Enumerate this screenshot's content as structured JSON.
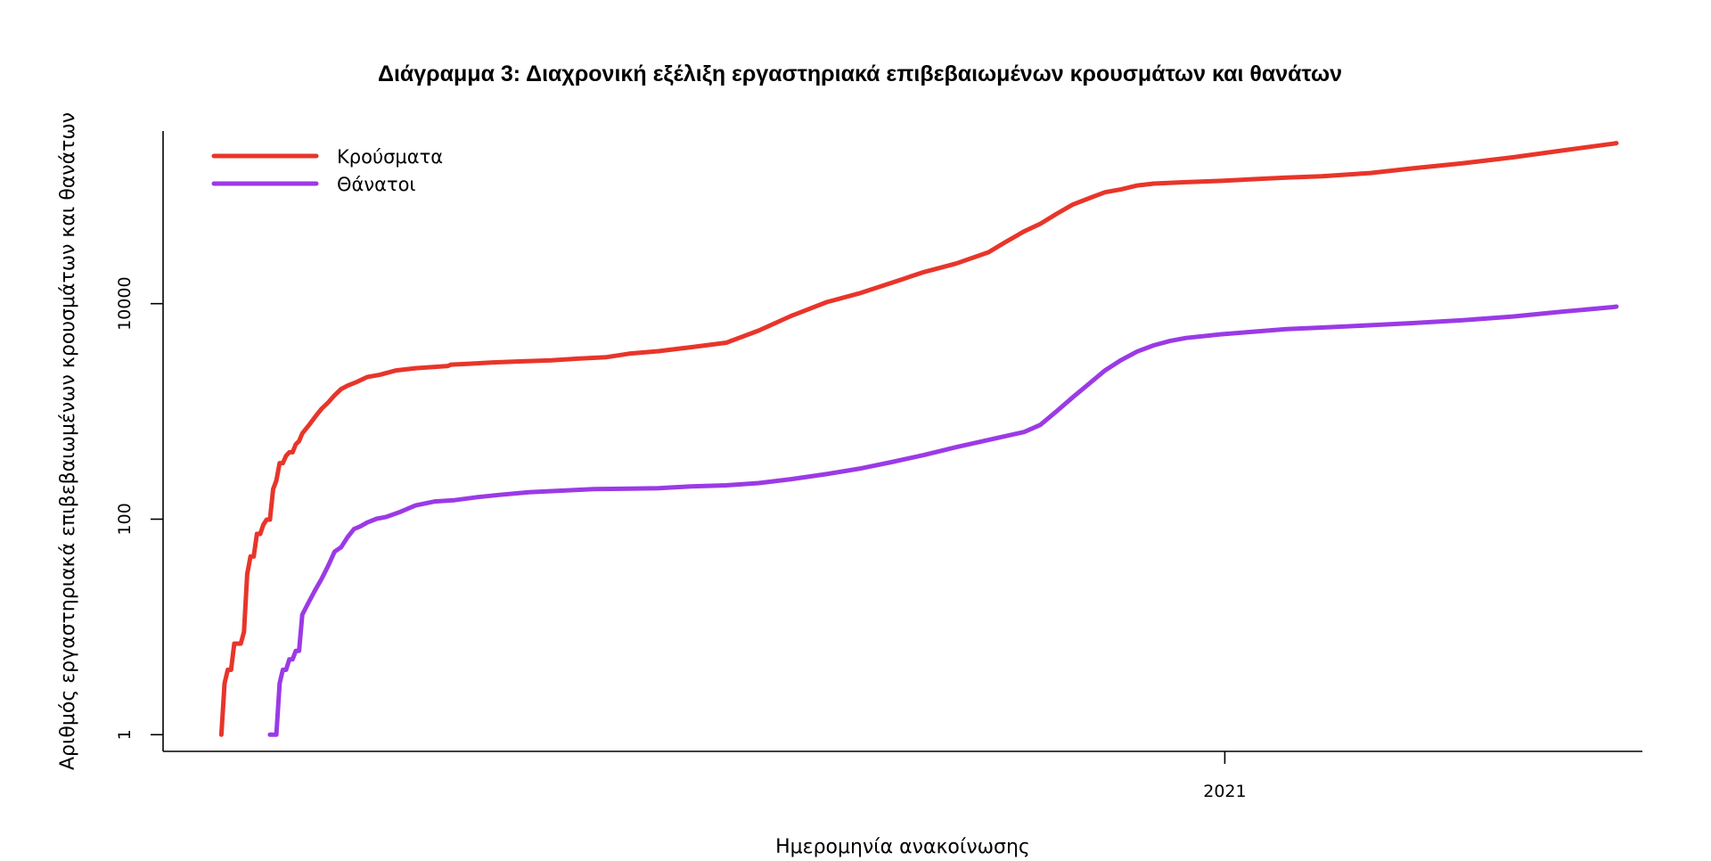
{
  "chart_data": {
    "type": "line",
    "title": "Διάγραμμα 3: Διαχρονική εξέλιξη εργαστηριακά επιβεβαιωμένων κρουσμάτων και θανάτων",
    "xlabel": "Ημερομηνία ανακοίνωσης",
    "ylabel": "Αριθμός εργαστηριακά επιβεβαιωμένων κρουσμάτων και θανάτων",
    "y_scale": "log",
    "ylim": [
      0.7,
      400000
    ],
    "xlim": [
      "2020-02-08",
      "2021-05-10"
    ],
    "x_ticks": [
      {
        "date": "2021-01-01",
        "label": "2021"
      }
    ],
    "y_ticks": [
      {
        "value": 1,
        "label": "1"
      },
      {
        "value": 100,
        "label": "100"
      },
      {
        "value": 10000,
        "label": "10000"
      }
    ],
    "legend": {
      "position": "top-left"
    },
    "grid": false,
    "colors": {
      "cases": "#e8352a",
      "deaths": "#9b3ae6"
    },
    "series": [
      {
        "key": "cases",
        "name": "Κρούσματα",
        "color": "#e8352a",
        "points": [
          [
            "2020-02-26",
            1
          ],
          [
            "2020-02-27",
            3
          ],
          [
            "2020-02-28",
            4
          ],
          [
            "2020-02-29",
            4
          ],
          [
            "2020-03-01",
            7
          ],
          [
            "2020-03-02",
            7
          ],
          [
            "2020-03-03",
            7
          ],
          [
            "2020-03-04",
            9
          ],
          [
            "2020-03-05",
            31
          ],
          [
            "2020-03-06",
            45
          ],
          [
            "2020-03-07",
            45
          ],
          [
            "2020-03-08",
            73
          ],
          [
            "2020-03-09",
            73
          ],
          [
            "2020-03-10",
            89
          ],
          [
            "2020-03-11",
            99
          ],
          [
            "2020-03-12",
            99
          ],
          [
            "2020-03-13",
            190
          ],
          [
            "2020-03-14",
            228
          ],
          [
            "2020-03-15",
            331
          ],
          [
            "2020-03-16",
            331
          ],
          [
            "2020-03-17",
            387
          ],
          [
            "2020-03-18",
            418
          ],
          [
            "2020-03-19",
            418
          ],
          [
            "2020-03-20",
            495
          ],
          [
            "2020-03-21",
            530
          ],
          [
            "2020-03-22",
            624
          ],
          [
            "2020-03-24",
            743
          ],
          [
            "2020-03-26",
            892
          ],
          [
            "2020-03-28",
            1061
          ],
          [
            "2020-03-30",
            1212
          ],
          [
            "2020-04-01",
            1415
          ],
          [
            "2020-04-03",
            1613
          ],
          [
            "2020-04-05",
            1735
          ],
          [
            "2020-04-08",
            1884
          ],
          [
            "2020-04-11",
            2081
          ],
          [
            "2020-04-15",
            2192
          ],
          [
            "2020-04-20",
            2401
          ],
          [
            "2020-04-26",
            2517
          ],
          [
            "2020-05-02",
            2591
          ],
          [
            "2020-05-06",
            2642
          ],
          [
            "2020-05-07",
            2716
          ],
          [
            "2020-05-12",
            2760
          ],
          [
            "2020-05-20",
            2850
          ],
          [
            "2020-05-29",
            2915
          ],
          [
            "2020-06-07",
            2980
          ],
          [
            "2020-06-15",
            3088
          ],
          [
            "2020-06-24",
            3189
          ],
          [
            "2020-07-01",
            3432
          ],
          [
            "2020-07-10",
            3622
          ],
          [
            "2020-07-20",
            3939
          ],
          [
            "2020-07-31",
            4337
          ],
          [
            "2020-08-10",
            5623
          ],
          [
            "2020-08-20",
            7684
          ],
          [
            "2020-08-31",
            10317
          ],
          [
            "2020-09-10",
            12452
          ],
          [
            "2020-09-20",
            15595
          ],
          [
            "2020-09-30",
            19613
          ],
          [
            "2020-10-10",
            23544
          ],
          [
            "2020-10-20",
            29992
          ],
          [
            "2020-10-25",
            36932
          ],
          [
            "2020-10-31",
            46892
          ],
          [
            "2020-11-05",
            55123
          ],
          [
            "2020-11-10",
            68000
          ],
          [
            "2020-11-15",
            83000
          ],
          [
            "2020-11-20",
            95000
          ],
          [
            "2020-11-25",
            108000
          ],
          [
            "2020-11-30",
            115000
          ],
          [
            "2020-12-05",
            125000
          ],
          [
            "2020-12-10",
            130000
          ],
          [
            "2020-12-20",
            134000
          ],
          [
            "2020-12-31",
            138000
          ],
          [
            "2021-01-10",
            143000
          ],
          [
            "2021-01-20",
            148000
          ],
          [
            "2021-01-31",
            152000
          ],
          [
            "2021-02-15",
            163000
          ],
          [
            "2021-02-28",
            180000
          ],
          [
            "2021-03-15",
            200000
          ],
          [
            "2021-03-31",
            228000
          ],
          [
            "2021-04-15",
            263000
          ],
          [
            "2021-05-01",
            305000
          ],
          [
            "2021-05-02",
            309000
          ]
        ]
      },
      {
        "key": "deaths",
        "name": "Θάνατοι",
        "color": "#9b3ae6",
        "points": [
          [
            "2020-03-12",
            1
          ],
          [
            "2020-03-13",
            1
          ],
          [
            "2020-03-14",
            1
          ],
          [
            "2020-03-15",
            3
          ],
          [
            "2020-03-16",
            4
          ],
          [
            "2020-03-17",
            4
          ],
          [
            "2020-03-18",
            5
          ],
          [
            "2020-03-19",
            5
          ],
          [
            "2020-03-20",
            6
          ],
          [
            "2020-03-21",
            6
          ],
          [
            "2020-03-22",
            13
          ],
          [
            "2020-03-24",
            17
          ],
          [
            "2020-03-26",
            22
          ],
          [
            "2020-03-28",
            28
          ],
          [
            "2020-03-30",
            37
          ],
          [
            "2020-04-01",
            50
          ],
          [
            "2020-04-03",
            55
          ],
          [
            "2020-04-05",
            68
          ],
          [
            "2020-04-07",
            81
          ],
          [
            "2020-04-09",
            86
          ],
          [
            "2020-04-11",
            93
          ],
          [
            "2020-04-14",
            101
          ],
          [
            "2020-04-17",
            105
          ],
          [
            "2020-04-21",
            116
          ],
          [
            "2020-04-26",
            134
          ],
          [
            "2020-05-02",
            146
          ],
          [
            "2020-05-08",
            150
          ],
          [
            "2020-05-15",
            160
          ],
          [
            "2020-05-22",
            168
          ],
          [
            "2020-05-31",
            178
          ],
          [
            "2020-06-10",
            184
          ],
          [
            "2020-06-20",
            190
          ],
          [
            "2020-07-01",
            192
          ],
          [
            "2020-07-10",
            194
          ],
          [
            "2020-07-20",
            201
          ],
          [
            "2020-07-31",
            206
          ],
          [
            "2020-08-10",
            216
          ],
          [
            "2020-08-20",
            235
          ],
          [
            "2020-08-31",
            262
          ],
          [
            "2020-09-10",
            294
          ],
          [
            "2020-09-20",
            338
          ],
          [
            "2020-09-30",
            393
          ],
          [
            "2020-10-10",
            466
          ],
          [
            "2020-10-20",
            543
          ],
          [
            "2020-10-31",
            644
          ],
          [
            "2020-11-05",
            750
          ],
          [
            "2020-11-10",
            1000
          ],
          [
            "2020-11-15",
            1350
          ],
          [
            "2020-11-20",
            1800
          ],
          [
            "2020-11-25",
            2400
          ],
          [
            "2020-11-30",
            3000
          ],
          [
            "2020-12-05",
            3600
          ],
          [
            "2020-12-10",
            4100
          ],
          [
            "2020-12-15",
            4500
          ],
          [
            "2020-12-20",
            4800
          ],
          [
            "2020-12-31",
            5200
          ],
          [
            "2021-01-10",
            5500
          ],
          [
            "2021-01-20",
            5800
          ],
          [
            "2021-01-31",
            6000
          ],
          [
            "2021-02-15",
            6300
          ],
          [
            "2021-02-28",
            6600
          ],
          [
            "2021-03-15",
            7000
          ],
          [
            "2021-03-31",
            7600
          ],
          [
            "2021-04-15",
            8400
          ],
          [
            "2021-05-01",
            9300
          ],
          [
            "2021-05-02",
            9380
          ]
        ]
      }
    ]
  }
}
